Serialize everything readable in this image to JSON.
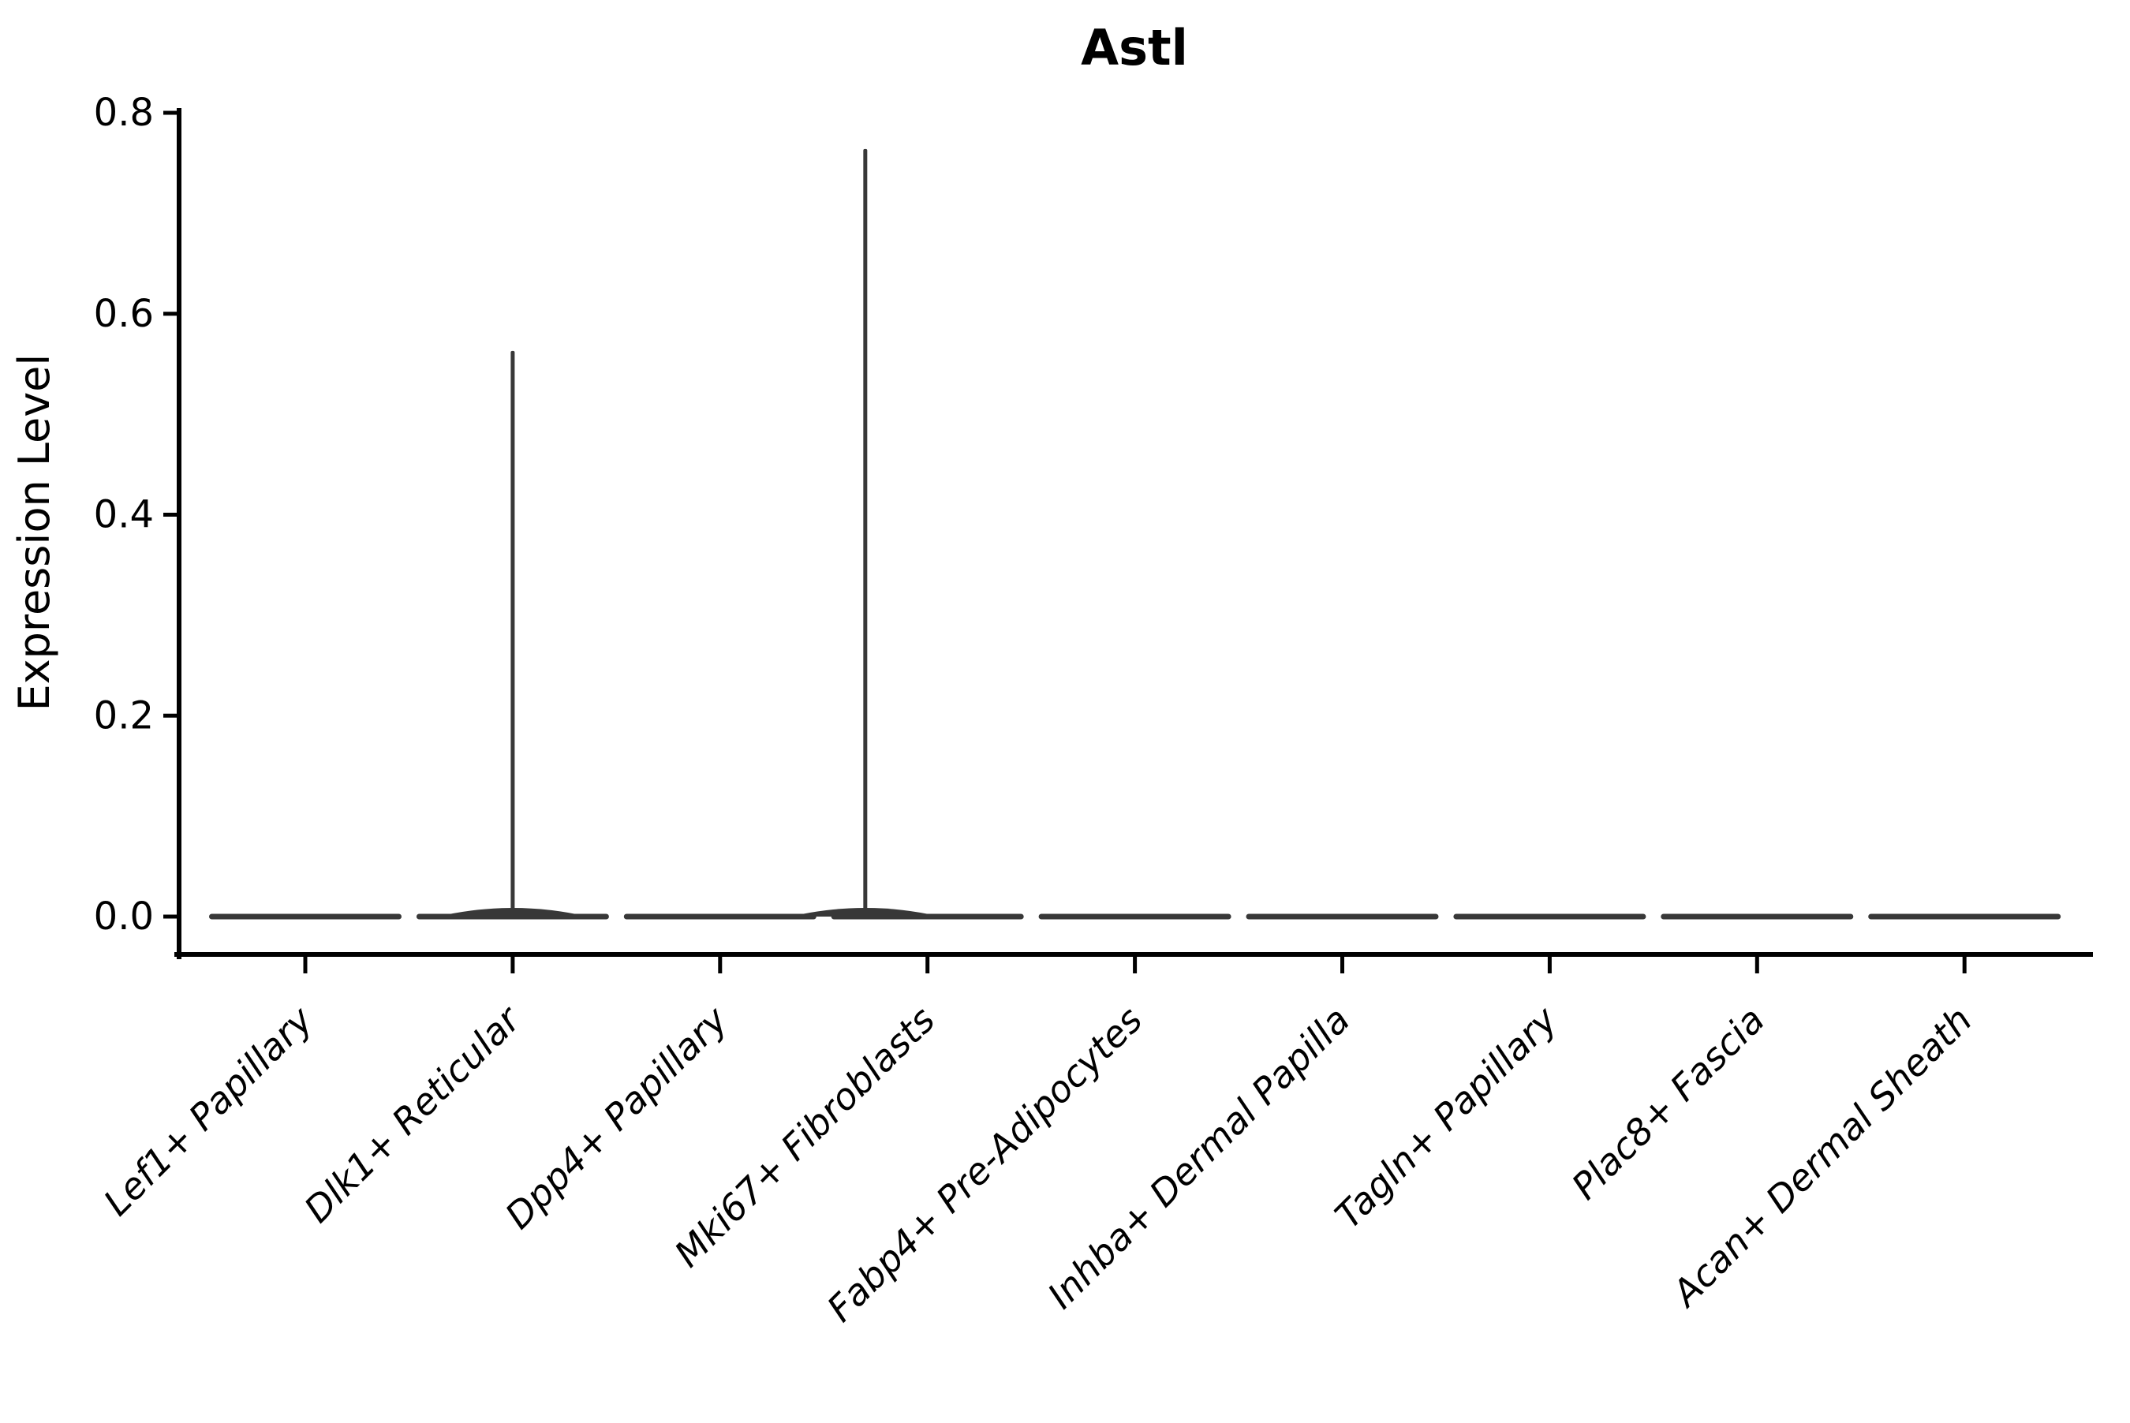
{
  "figure": {
    "background": "#ffffff"
  },
  "chart_data": {
    "type": "violin",
    "title": "Astl",
    "xlabel": "",
    "ylabel": "Expression Level",
    "legend": null,
    "grid": false,
    "ylim": [
      0,
      0.8
    ],
    "ytick_labels": [
      "0.0",
      "0.2",
      "0.4",
      "0.6",
      "0.8"
    ],
    "ytick_values": [
      0.0,
      0.2,
      0.4,
      0.6,
      0.8
    ],
    "categories": [
      "Lef1+ Papillary",
      "Dlk1+ Reticular",
      "Dpp4+ Papillary",
      "Mki67+ Fibroblasts",
      "Fabp4+ Pre-Adipocytes",
      "Inhba+ Dermal Papilla",
      "Tagln+ Papillary",
      "Plac8+ Fascia",
      "Acan+ Dermal Sheath"
    ],
    "violins": [
      {
        "category": "Lef1+ Papillary",
        "baseline_value": 0.0,
        "peak_value": 0.0,
        "spike_offset_frac": 0.0
      },
      {
        "category": "Dlk1+ Reticular",
        "baseline_value": 0.0,
        "peak_value": 0.563,
        "spike_offset_frac": 0.0
      },
      {
        "category": "Dpp4+ Papillary",
        "baseline_value": 0.0,
        "peak_value": 0.0,
        "spike_offset_frac": 0.0
      },
      {
        "category": "Mki67+ Fibroblasts",
        "baseline_value": 0.0,
        "peak_value": 0.764,
        "spike_offset_frac": -0.3
      },
      {
        "category": "Fabp4+ Pre-Adipocytes",
        "baseline_value": 0.0,
        "peak_value": 0.0,
        "spike_offset_frac": 0.0
      },
      {
        "category": "Inhba+ Dermal Papilla",
        "baseline_value": 0.0,
        "peak_value": 0.0,
        "spike_offset_frac": 0.0
      },
      {
        "category": "Tagln+ Papillary",
        "baseline_value": 0.0,
        "peak_value": 0.0,
        "spike_offset_frac": 0.0
      },
      {
        "category": "Plac8+ Fascia",
        "baseline_value": 0.0,
        "peak_value": 0.0,
        "spike_offset_frac": 0.0
      },
      {
        "category": "Acan+ Dermal Sheath",
        "baseline_value": 0.0,
        "peak_value": 0.0,
        "spike_offset_frac": 0.0
      }
    ],
    "colors": {
      "violin": "#383838",
      "axis": "#000000",
      "text": "#000000",
      "background": "#ffffff"
    }
  }
}
